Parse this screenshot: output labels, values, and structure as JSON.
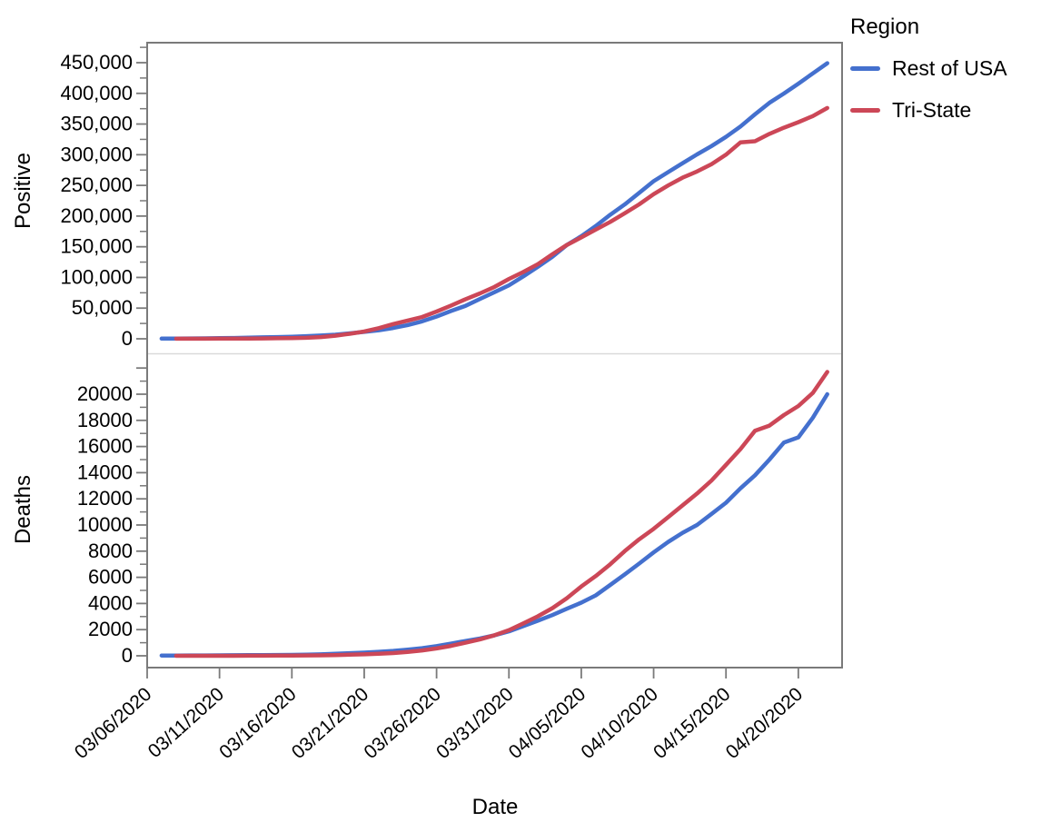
{
  "figure_title": "",
  "axes": {
    "x_title": "Date",
    "x_tick_labels": [
      "03/06/2020",
      "03/11/2020",
      "03/16/2020",
      "03/21/2020",
      "03/26/2020",
      "03/31/2020",
      "04/05/2020",
      "04/10/2020",
      "04/15/2020",
      "04/20/2020"
    ]
  },
  "legend": {
    "title": "Region",
    "items": [
      {
        "label": "Rest of USA",
        "color": "#4470CE"
      },
      {
        "label": "Tri-State",
        "color": "#CC4757"
      }
    ]
  },
  "chart_data": [
    {
      "type": "line",
      "panel": "top",
      "ylabel": "Positive",
      "xlabel": "Date",
      "ylim": [
        0,
        482000
      ],
      "ytick_step": 50000,
      "ytick_labels": [
        "0",
        "50,000",
        "100,000",
        "150,000",
        "200,000",
        "250,000",
        "300,000",
        "350,000",
        "400,000",
        "450,000"
      ],
      "grid": false,
      "legend_position": "right-outside-top",
      "x": [
        "03/07/2020",
        "03/08/2020",
        "03/09/2020",
        "03/10/2020",
        "03/11/2020",
        "03/12/2020",
        "03/13/2020",
        "03/14/2020",
        "03/15/2020",
        "03/16/2020",
        "03/17/2020",
        "03/18/2020",
        "03/19/2020",
        "03/20/2020",
        "03/21/2020",
        "03/22/2020",
        "03/23/2020",
        "03/24/2020",
        "03/25/2020",
        "03/26/2020",
        "03/27/2020",
        "03/28/2020",
        "03/29/2020",
        "03/30/2020",
        "03/31/2020",
        "04/01/2020",
        "04/02/2020",
        "04/03/2020",
        "04/04/2020",
        "04/05/2020",
        "04/06/2020",
        "04/07/2020",
        "04/08/2020",
        "04/09/2020",
        "04/10/2020",
        "04/11/2020",
        "04/12/2020",
        "04/13/2020",
        "04/14/2020",
        "04/15/2020",
        "04/16/2020",
        "04/17/2020",
        "04/18/2020",
        "04/19/2020",
        "04/20/2020",
        "04/21/2020",
        "04/22/2020"
      ],
      "series": [
        {
          "name": "Rest of USA",
          "color": "#4470CE",
          "values": [
            340,
            420,
            560,
            760,
            1030,
            1400,
            1720,
            2300,
            2770,
            3410,
            4290,
            5260,
            6660,
            8840,
            11320,
            13780,
            17630,
            22380,
            28430,
            36340,
            45250,
            53750,
            65030,
            75970,
            87150,
            101800,
            117300,
            133500,
            152900,
            167100,
            183700,
            202200,
            219000,
            237700,
            256800,
            271600,
            286200,
            300500,
            314100,
            329100,
            346000,
            365700,
            384600,
            399600,
            415800,
            432500,
            449100
          ]
        },
        {
          "name": "Tri-State",
          "color": "#CC4757",
          "values": [
            null,
            120,
            155,
            195,
            250,
            310,
            500,
            600,
            830,
            1090,
            1620,
            2740,
            5060,
            8190,
            11880,
            17280,
            23940,
            29570,
            35500,
            44400,
            54160,
            64480,
            74030,
            84560,
            97620,
            109000,
            121700,
            137600,
            152900,
            165200,
            178000,
            190500,
            204600,
            219100,
            235600,
            249900,
            262600,
            272700,
            284600,
            300000,
            320000,
            322000,
            334000,
            344000,
            353000,
            363000,
            376200
          ]
        }
      ]
    },
    {
      "type": "line",
      "panel": "bottom",
      "ylabel": "Deaths",
      "xlabel": "Date",
      "ylim": [
        0,
        23000
      ],
      "ytick_step": 2000,
      "ytick_labels": [
        "0",
        "2000",
        "4000",
        "6000",
        "8000",
        "10000",
        "12000",
        "14000",
        "16000",
        "18000",
        "20000"
      ],
      "grid": false,
      "x": [
        "03/07/2020",
        "03/08/2020",
        "03/09/2020",
        "03/10/2020",
        "03/11/2020",
        "03/12/2020",
        "03/13/2020",
        "03/14/2020",
        "03/15/2020",
        "03/16/2020",
        "03/17/2020",
        "03/18/2020",
        "03/19/2020",
        "03/20/2020",
        "03/21/2020",
        "03/22/2020",
        "03/23/2020",
        "03/24/2020",
        "03/25/2020",
        "03/26/2020",
        "03/27/2020",
        "03/28/2020",
        "03/29/2020",
        "03/30/2020",
        "03/31/2020",
        "04/01/2020",
        "04/02/2020",
        "04/03/2020",
        "04/04/2020",
        "04/05/2020",
        "04/06/2020",
        "04/07/2020",
        "04/08/2020",
        "04/09/2020",
        "04/10/2020",
        "04/11/2020",
        "04/12/2020",
        "04/13/2020",
        "04/14/2020",
        "04/15/2020",
        "04/16/2020",
        "04/17/2020",
        "04/18/2020",
        "04/19/2020",
        "04/20/2020",
        "04/21/2020",
        "04/22/2020"
      ],
      "series": [
        {
          "name": "Rest of USA",
          "color": "#4470CE",
          "values": [
            19,
            21,
            26,
            30,
            36,
            40,
            47,
            54,
            63,
            71,
            90,
            108,
            150,
            200,
            244,
            305,
            377,
            475,
            582,
            745,
            930,
            1130,
            1320,
            1560,
            1870,
            2270,
            2680,
            3110,
            3600,
            4060,
            4620,
            5420,
            6220,
            7050,
            7900,
            8700,
            9400,
            10000,
            10850,
            11700,
            12800,
            13800,
            15000,
            16300,
            16700,
            18200,
            20000
          ]
        },
        {
          "name": "Tri-State",
          "color": "#CC4757",
          "values": [
            null,
            1,
            1,
            2,
            2,
            3,
            5,
            8,
            12,
            18,
            27,
            38,
            56,
            80,
            110,
            155,
            210,
            300,
            410,
            560,
            760,
            1000,
            1260,
            1570,
            1960,
            2480,
            3020,
            3640,
            4400,
            5300,
            6100,
            7000,
            8000,
            8900,
            9700,
            10600,
            11500,
            12400,
            13400,
            14600,
            15800,
            17200,
            17600,
            18400,
            19100,
            20100,
            21700
          ]
        }
      ]
    }
  ]
}
